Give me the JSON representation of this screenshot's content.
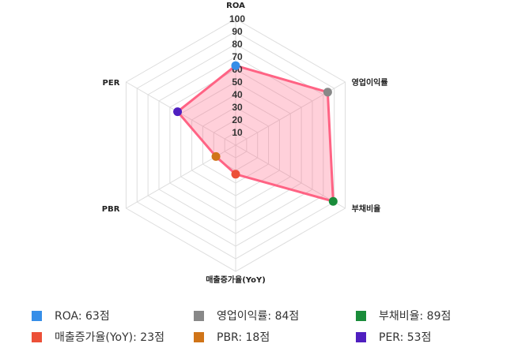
{
  "chart_data": {
    "type": "radar",
    "axes": [
      "ROA",
      "영업이익률",
      "부채비율",
      "매출증가율(YoY)",
      "PBR",
      "PER"
    ],
    "values": [
      63,
      84,
      89,
      23,
      18,
      53
    ],
    "range": [
      0,
      100
    ],
    "ticks": [
      "10",
      "20",
      "30",
      "40",
      "50",
      "60",
      "70",
      "80",
      "90",
      "100"
    ],
    "grid": true,
    "line_color": "#ff6384",
    "fill_color": "rgba(255,99,132,0.3)",
    "point_colors": [
      "#368ee8",
      "#888888",
      "#1a8c3a",
      "#ec5038",
      "#d07418",
      "#4f1fc0"
    ],
    "legend_position": "bottom",
    "legend": [
      {
        "label": "ROA: 63점",
        "color": "#368ee8"
      },
      {
        "label": "영업이익률: 84점",
        "color": "#888888"
      },
      {
        "label": "부채비율: 89점",
        "color": "#1a8c3a"
      },
      {
        "label": "매출증가율(YoY): 23점",
        "color": "#ec5038"
      },
      {
        "label": "PBR: 18점",
        "color": "#d07418"
      },
      {
        "label": "PER: 53점",
        "color": "#4f1fc0"
      }
    ]
  }
}
